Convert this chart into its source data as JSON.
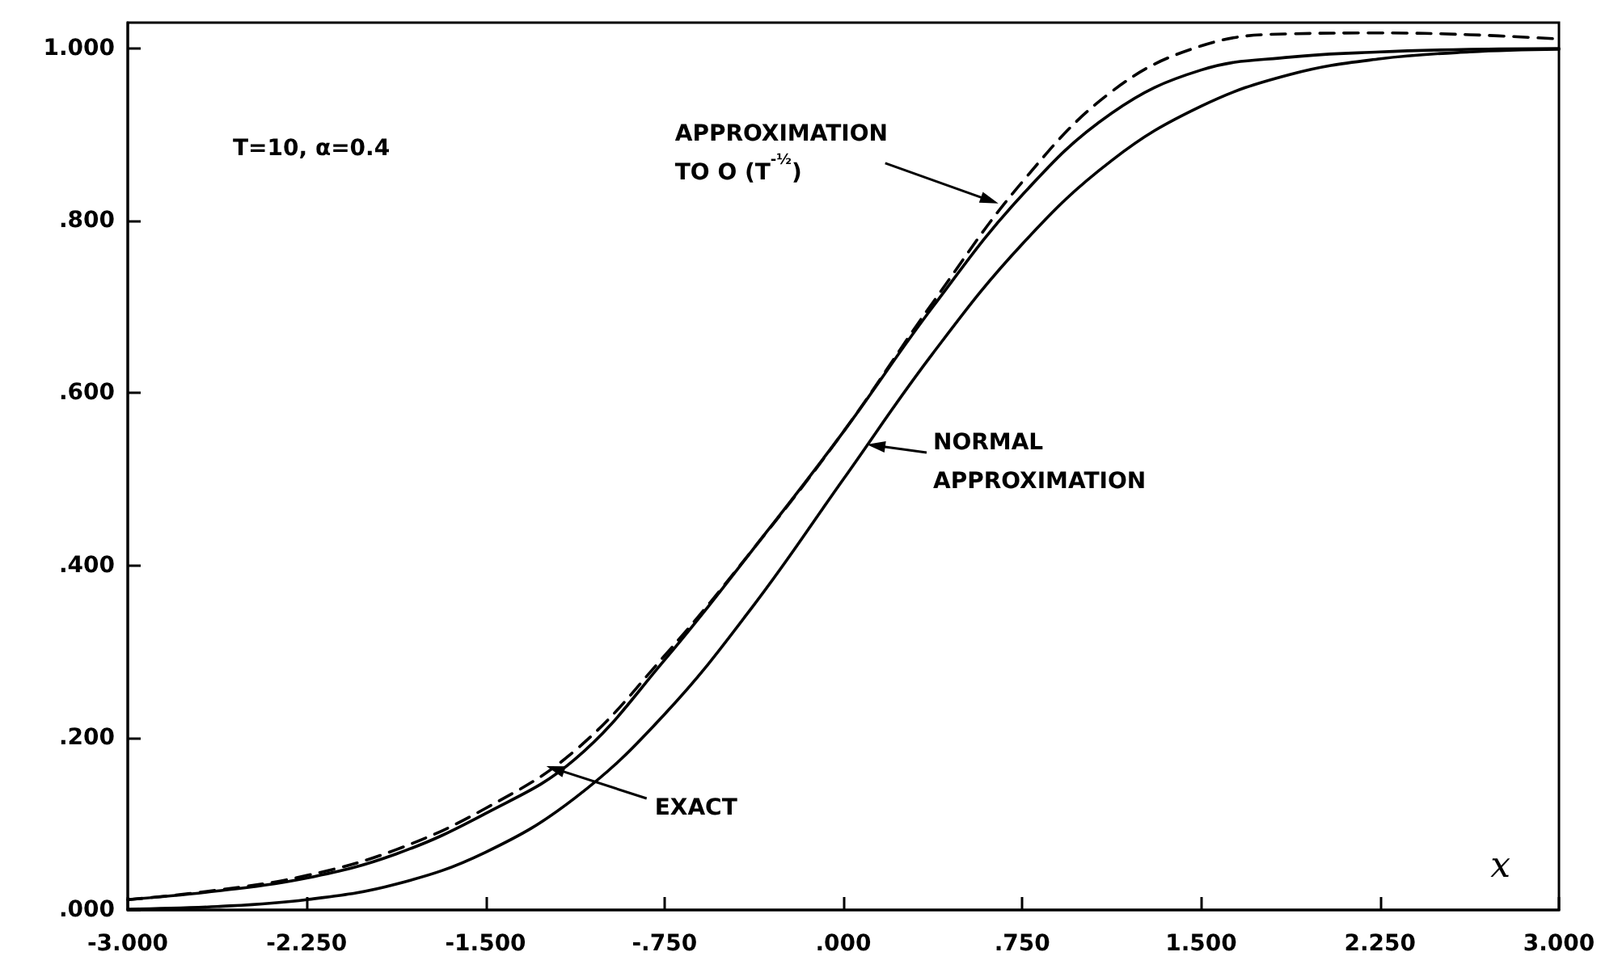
{
  "chart_data": {
    "type": "line",
    "xlabel": "x",
    "marker": "none",
    "x": [
      -3,
      -2.625,
      -2.25,
      -1.875,
      -1.5,
      -1.125,
      -0.75,
      -0.375,
      0,
      0.375,
      0.75,
      1.125,
      1.5,
      1.875,
      2.25,
      2.625,
      3
    ],
    "series": [
      {
        "color": "#000000",
        "line_style": "solid",
        "values": [
          0.012,
          0.022,
          0.037,
          0.065,
          0.112,
          0.175,
          0.29,
          0.42,
          0.555,
          0.7,
          0.83,
          0.925,
          0.975,
          0.99,
          0.996,
          0.999,
          1.0
        ]
      },
      {
        "color": "#000000",
        "line_style": "dashed",
        "values": [
          0.012,
          0.023,
          0.04,
          0.07,
          0.118,
          0.185,
          0.295,
          0.42,
          0.555,
          0.705,
          0.845,
          0.95,
          1.003,
          1.017,
          1.018,
          1.016,
          1.011
        ]
      },
      {
        "color": "#000000",
        "line_style": "solid",
        "values": [
          0.001,
          0.004,
          0.012,
          0.03,
          0.067,
          0.13,
          0.227,
          0.354,
          0.5,
          0.646,
          0.773,
          0.87,
          0.933,
          0.97,
          0.988,
          0.996,
          0.999
        ]
      }
    ],
    "xlim": [
      -3,
      3
    ],
    "xticks": [
      {
        "value": -3,
        "label": "-3.000"
      },
      {
        "value": -2.25,
        "label": "-2.250"
      },
      {
        "value": -1.5,
        "label": "-1.500"
      },
      {
        "value": -0.75,
        "label": "-.750"
      },
      {
        "value": 0,
        "label": ".000"
      },
      {
        "value": 0.75,
        "label": ".750"
      },
      {
        "value": 1.5,
        "label": "1.500"
      },
      {
        "value": 2.25,
        "label": "2.250"
      },
      {
        "value": 3,
        "label": "3.000"
      }
    ],
    "ylim": [
      0,
      1.03
    ],
    "yticks": [
      {
        "value": 0,
        "label": ".000"
      },
      {
        "value": 0.2,
        "label": ".200"
      },
      {
        "value": 0.4,
        "label": ".400"
      },
      {
        "value": 0.6,
        "label": ".600"
      },
      {
        "value": 0.8,
        "label": ".800"
      },
      {
        "value": 1,
        "label": "1.000"
      }
    ],
    "grid": false,
    "annotations": [
      "T=10, α=0.4",
      {
        "text": "APPROXIMATION TO O (T$^{-½}$)",
        "x": 0.65,
        "y": 0.82
      },
      "NORMAL APPROXIMATION",
      {
        "text": "EXACT",
        "x": -1.245,
        "y": 0.167
      }
    ]
  }
}
